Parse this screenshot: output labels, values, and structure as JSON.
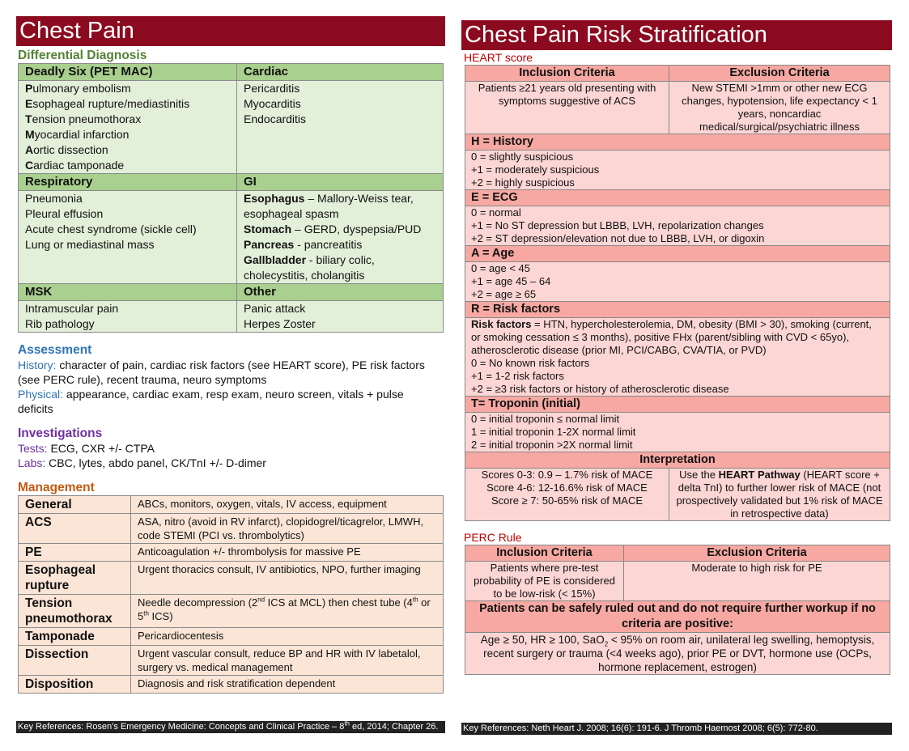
{
  "left": {
    "title": "Chest Pain",
    "differential": {
      "heading": "Differential Diagnosis",
      "deadly_six": {
        "header": "Deadly Six (PET MAC)",
        "items": [
          [
            "P",
            "ulmonary embolism"
          ],
          [
            "E",
            "sophageal rupture/mediastinitis"
          ],
          [
            "T",
            "ension pneumothorax"
          ],
          [
            "M",
            "yocardial infarction"
          ],
          [
            "A",
            "ortic dissection"
          ],
          [
            "C",
            "ardiac tamponade"
          ]
        ]
      },
      "cardiac": {
        "header": "Cardiac",
        "items": [
          "Pericarditis",
          "Myocarditis",
          "Endocarditis"
        ]
      },
      "respiratory": {
        "header": "Respiratory",
        "items": [
          "Pneumonia",
          "Pleural effusion",
          "Acute chest syndrome (sickle cell)",
          "Lung or mediastinal mass"
        ]
      },
      "gi": {
        "header": "GI",
        "items": [
          [
            "Esophagus",
            " – Mallory-Weiss tear, esophageal spasm"
          ],
          [
            "Stomach",
            " – GERD, dyspepsia/PUD"
          ],
          [
            "Pancreas",
            " - pancreatitis"
          ],
          [
            "Gallbladder",
            " - biliary colic, cholecystitis, cholangitis"
          ]
        ]
      },
      "msk": {
        "header": "MSK",
        "items": [
          "Intramuscular pain",
          "Rib pathology"
        ]
      },
      "other": {
        "header": "Other",
        "items": [
          "Panic attack",
          "Herpes Zoster"
        ]
      }
    },
    "assessment": {
      "heading": "Assessment",
      "history_label": "History:",
      "history": " character of pain, cardiac risk factors (see HEART score), PE risk factors (see PERC rule), recent trauma, neuro symptoms",
      "physical_label": "Physical:",
      "physical": " appearance, cardiac exam, resp exam, neuro screen, vitals + pulse deficits"
    },
    "investigations": {
      "heading": "Investigations",
      "tests_label": "Tests:",
      "tests": " ECG, CXR +/- CTPA",
      "labs_label": "Labs:",
      "labs": " CBC, lytes, abdo panel, CK/TnI +/- D-dimer"
    },
    "management": {
      "heading": "Management",
      "rows": [
        {
          "k": "General",
          "v": "ABCs, monitors, oxygen, vitals, IV access, equipment"
        },
        {
          "k": "ACS",
          "v": "ASA, nitro (avoid in RV infarct), clopidogrel/ticagrelor, LMWH, code STEMI (PCI vs. thrombolytics)"
        },
        {
          "k": "PE",
          "v": "Anticoagulation +/- thrombolysis for massive PE"
        },
        {
          "k": "Esophageal rupture",
          "v": "Urgent thoracics consult, IV antibiotics, NPO, further imaging"
        },
        {
          "k": "Tension pneumothorax",
          "v": [
            "Needle decompression (2",
            "nd",
            " ICS at MCL) then chest tube (4",
            "th",
            " or 5",
            "th",
            " ICS)"
          ]
        },
        {
          "k": "Tamponade",
          "v": "Pericardiocentesis"
        },
        {
          "k": "Dissection",
          "v": "Urgent vascular consult, reduce BP and HR with IV labetalol, surgery vs. medical management"
        },
        {
          "k": "Disposition",
          "v": "Diagnosis and risk stratification dependent"
        }
      ]
    },
    "reference": [
      "Key References: Rosen’s Emergency Medicine: Concepts and Clinical Practice – 8",
      "th",
      " ed, 2014; Chapter 26."
    ]
  },
  "right": {
    "title": "Chest Pain Risk Stratification",
    "heart": {
      "heading": "HEART score",
      "inclusion_header": "Inclusion Criteria",
      "exclusion_header": "Exclusion Criteria",
      "inclusion": "Patients ≥21 years old presenting with symptoms suggestive of ACS",
      "exclusion": "New STEMI >1mm or other new ECG changes, hypotension, life expectancy < 1 years, noncardiac medical/surgical/psychiatric illness",
      "history": {
        "header": "H = History",
        "items": [
          "0 = slightly suspicious",
          "+1 = moderately suspicious",
          "+2 = highly suspicious"
        ]
      },
      "ecg": {
        "header": "E = ECG",
        "items": [
          "0 = normal",
          "+1 = No ST depression but LBBB, LVH, repolarization changes",
          "+2 = ST depression/elevation not due to LBBB, LVH, or digoxin"
        ]
      },
      "age": {
        "header": "A = Age",
        "items": [
          "0 = age < 45",
          "+1 = age 45 – 64",
          "+2 = age ≥ 65"
        ]
      },
      "risk": {
        "header": "R = Risk factors",
        "lead": "Risk factors",
        "def": " = HTN, hypercholesterolemia, DM, obesity (BMI > 30), smoking (current, or smoking cessation ≤ 3 months), positive FHx (parent/sibling with CVD < 65yo), atherosclerotic disease (prior MI, PCI/CABG, CVA/TIA, or PVD)",
        "items": [
          "0 = No known risk factors",
          "+1 = 1-2 risk factors",
          "+2 = ≥3 risk factors or history of atherosclerotic disease"
        ]
      },
      "troponin": {
        "header": "T= Troponin (initial)",
        "items": [
          "0 = initial troponin ≤ normal limit",
          "1 = initial troponin 1-2X normal limit",
          "2 = initial troponin >2X normal limit"
        ]
      },
      "interpretation": {
        "header": "Interpretation",
        "scores": [
          "Scores 0-3: 0.9 – 1.7% risk of MACE",
          "Score 4-6: 12-16.6% risk of MACE",
          "Score ≥ 7: 50-65% risk of MACE"
        ],
        "pathway": [
          "Use the ",
          "HEART Pathway",
          " (HEART score + delta TnI) to further lower risk of MACE (not prospectively validated but 1% risk of MACE in retrospective data)"
        ]
      }
    },
    "perc": {
      "heading": "PERC Rule",
      "inclusion_header": "Inclusion Criteria",
      "exclusion_header": "Exclusion Criteria",
      "inclusion": "Patients where pre-test probability of PE is considered to be low-risk (< 15%)",
      "exclusion": "Moderate to high risk for PE",
      "ruleout": "Patients can be safely ruled out and do not require further workup if no criteria are positive:",
      "criteria": [
        "Age ≥ 50, HR ≥ 100, SaO",
        "2",
        " < 95% on room air, unilateral leg swelling, hemoptysis, recent surgery or trauma (<4 weeks ago), prior PE or DVT, hormone use (OCPs, hormone replacement, estrogen)"
      ]
    },
    "reference": "Key References: Neth Heart J. 2008; 16(6): 191-6. J Thromb Haemost 2008; 6(5): 772-80."
  },
  "colors": {
    "title": "#8c0a1f",
    "green": "#a9d08e",
    "assessment": "#2e74b5",
    "investigations": "#7030a0",
    "management": "#c55a11",
    "salmon": "#f7a8a2"
  }
}
